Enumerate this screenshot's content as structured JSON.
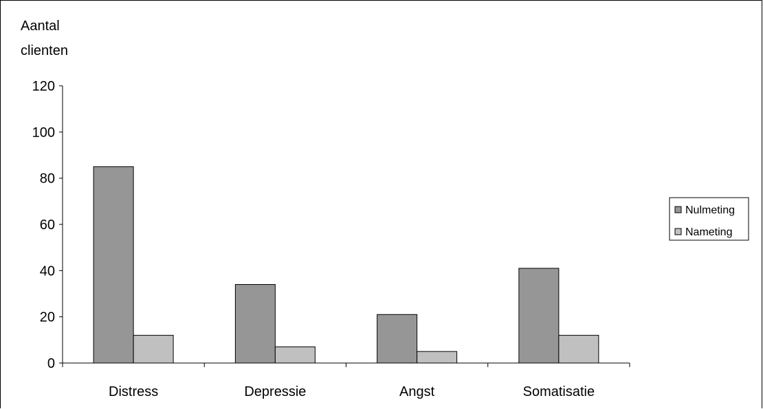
{
  "chart_data": {
    "type": "bar",
    "ylabel_lines": [
      "Aantal",
      "clienten"
    ],
    "categories": [
      "Distress",
      "Depressie",
      "Angst",
      "Somatisatie"
    ],
    "series": [
      {
        "name": "Nulmeting",
        "values": [
          85,
          34,
          21,
          41
        ]
      },
      {
        "name": "Nameting",
        "values": [
          12,
          7,
          5,
          12
        ]
      }
    ],
    "ylim": [
      0,
      120
    ],
    "yticks": [
      "0",
      "20",
      "40",
      "60",
      "80",
      "100",
      "120"
    ],
    "grid": false,
    "legend": "right"
  },
  "colors": {
    "Nulmeting": "#969696",
    "Nameting": "#c0c0c0"
  }
}
